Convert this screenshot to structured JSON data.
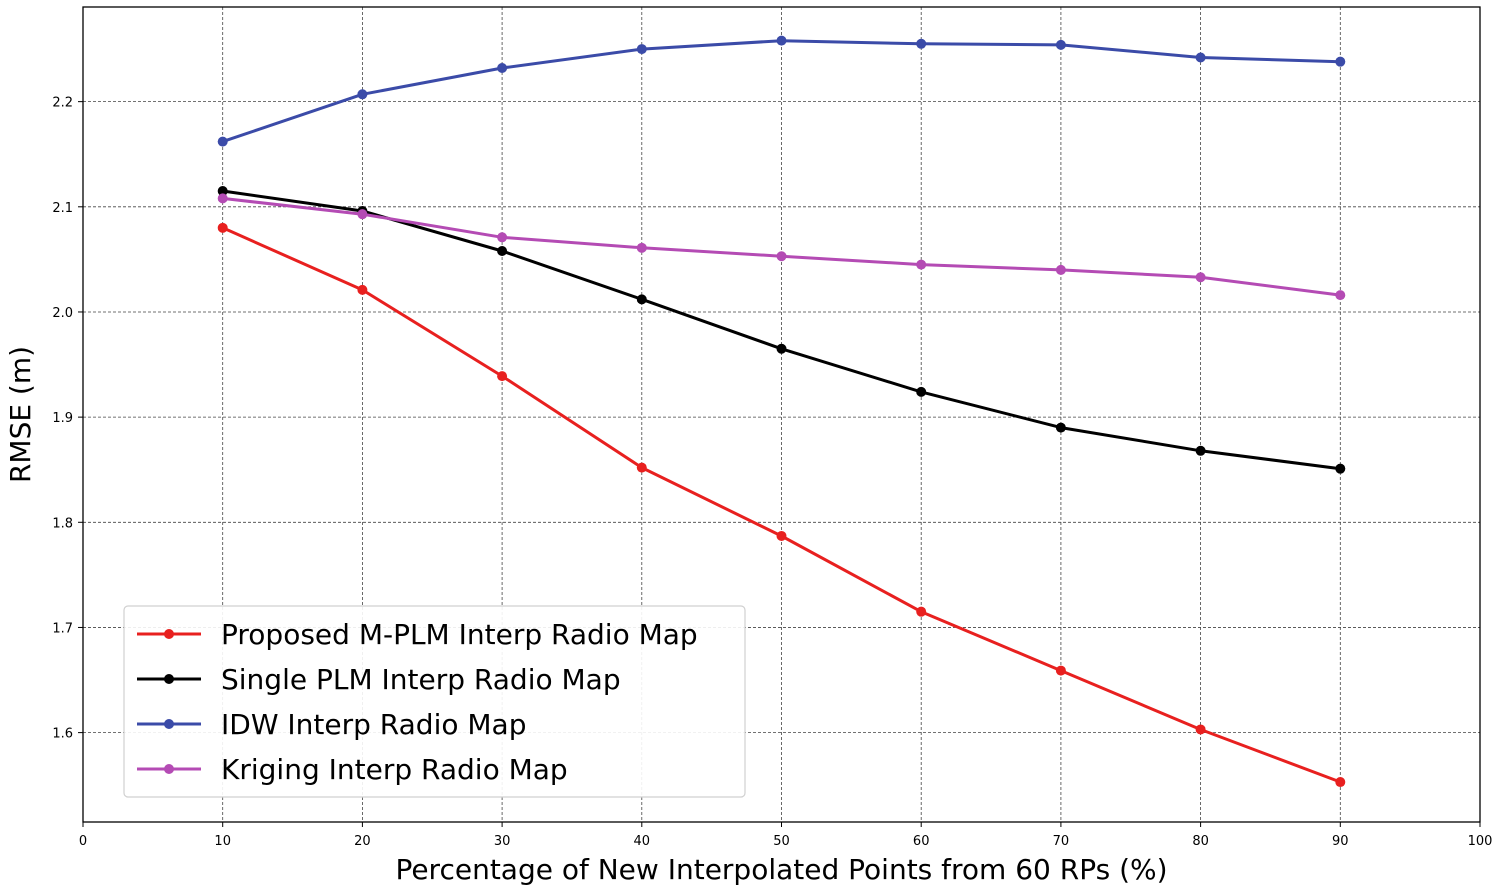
{
  "chart_data": {
    "type": "line",
    "title": "",
    "xlabel": "Percentage of New Interpolated Points from 60 RPs (%)",
    "ylabel": "RMSE (m)",
    "xlim": [
      0,
      100
    ],
    "ylim": [
      1.515,
      2.29
    ],
    "xticks": [
      0,
      10,
      20,
      30,
      40,
      50,
      60,
      70,
      80,
      90,
      100
    ],
    "yticks": [
      1.6,
      1.7,
      1.8,
      1.9,
      2.0,
      2.1,
      2.2
    ],
    "ytick_labels": [
      "1.6",
      "1.7",
      "1.8",
      "1.9",
      "2.0",
      "2.1",
      "2.2"
    ],
    "grid": true,
    "legend_position": "lower-left",
    "x": [
      10,
      20,
      30,
      40,
      50,
      60,
      70,
      80,
      90
    ],
    "series": [
      {
        "name": "Proposed M-PLM Interp Radio Map",
        "color": "#e8201f",
        "values": [
          2.08,
          2.021,
          1.939,
          1.852,
          1.787,
          1.715,
          1.659,
          1.603,
          1.553
        ]
      },
      {
        "name": "Single PLM Interp Radio Map",
        "color": "#000000",
        "values": [
          2.115,
          2.096,
          2.058,
          2.012,
          1.965,
          1.924,
          1.89,
          1.868,
          1.851
        ]
      },
      {
        "name": "IDW Interp Radio Map",
        "color": "#3b4ba8",
        "values": [
          2.162,
          2.207,
          2.232,
          2.25,
          2.258,
          2.255,
          2.254,
          2.242,
          2.238
        ]
      },
      {
        "name": "Kriging Interp Radio Map",
        "color": "#b44bb4",
        "values": [
          2.108,
          2.093,
          2.071,
          2.061,
          2.053,
          2.045,
          2.04,
          2.033,
          2.016
        ]
      }
    ]
  }
}
